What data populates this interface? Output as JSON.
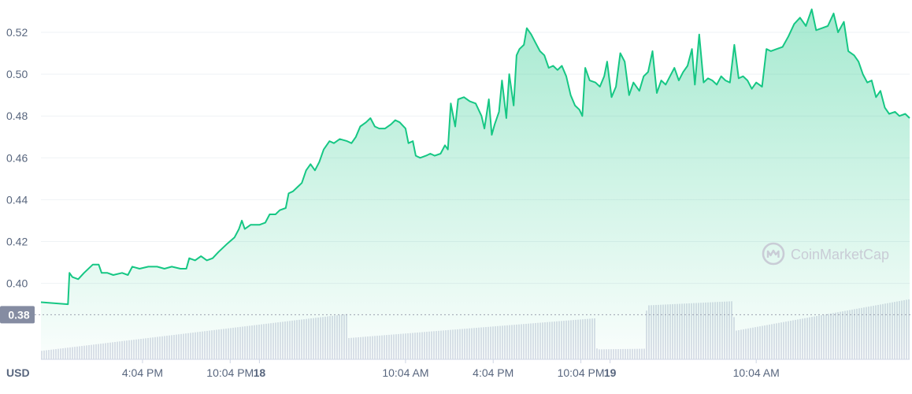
{
  "chart_data": {
    "type": "area",
    "currency": "USD",
    "y_ticks": [
      "0.52",
      "0.50",
      "0.48",
      "0.46",
      "0.44",
      "0.42",
      "0.40"
    ],
    "ylim": [
      0.3725,
      0.5325
    ],
    "x_ticks": [
      {
        "label": "4:04 PM",
        "bold": false,
        "hour": 6
      },
      {
        "label": "10:04 PM",
        "bold": false,
        "hour": 12
      },
      {
        "label": "18",
        "bold": true,
        "hour": 14
      },
      {
        "label": "10:04 AM",
        "bold": false,
        "hour": 24
      },
      {
        "label": "4:04 PM",
        "bold": false,
        "hour": 30
      },
      {
        "label": "10:04 PM",
        "bold": false,
        "hour": 36
      },
      {
        "label": "19",
        "bold": true,
        "hour": 38
      },
      {
        "label": "10:04 AM",
        "bold": false,
        "hour": 48
      }
    ],
    "x_range_hours": [
      -0.95,
      58.5
    ],
    "current_price_label": "0.38",
    "current_price_value": 0.385,
    "watermark": "CoinMarketCap",
    "series": [
      {
        "kind": "price",
        "points": [
          [
            -0.95,
            0.391
          ],
          [
            0.9,
            0.39
          ],
          [
            1.0,
            0.405
          ],
          [
            1.2,
            0.403
          ],
          [
            1.6,
            0.402
          ],
          [
            2.0,
            0.405
          ],
          [
            2.6,
            0.409
          ],
          [
            3.0,
            0.409
          ],
          [
            3.2,
            0.405
          ],
          [
            3.6,
            0.405
          ],
          [
            4.0,
            0.404
          ],
          [
            4.6,
            0.405
          ],
          [
            5.0,
            0.404
          ],
          [
            5.3,
            0.408
          ],
          [
            5.8,
            0.407
          ],
          [
            6.4,
            0.408
          ],
          [
            7.0,
            0.408
          ],
          [
            7.5,
            0.407
          ],
          [
            8.0,
            0.408
          ],
          [
            8.6,
            0.407
          ],
          [
            9.0,
            0.407
          ],
          [
            9.2,
            0.412
          ],
          [
            9.6,
            0.411
          ],
          [
            10.0,
            0.413
          ],
          [
            10.4,
            0.411
          ],
          [
            10.8,
            0.412
          ],
          [
            11.2,
            0.415
          ],
          [
            11.8,
            0.419
          ],
          [
            12.3,
            0.422
          ],
          [
            12.6,
            0.426
          ],
          [
            12.8,
            0.43
          ],
          [
            13.0,
            0.426
          ],
          [
            13.4,
            0.428
          ],
          [
            14.0,
            0.428
          ],
          [
            14.4,
            0.429
          ],
          [
            14.7,
            0.433
          ],
          [
            15.1,
            0.433
          ],
          [
            15.4,
            0.435
          ],
          [
            15.8,
            0.436
          ],
          [
            16.0,
            0.443
          ],
          [
            16.3,
            0.444
          ],
          [
            16.6,
            0.446
          ],
          [
            16.9,
            0.448
          ],
          [
            17.2,
            0.454
          ],
          [
            17.5,
            0.457
          ],
          [
            17.8,
            0.454
          ],
          [
            18.1,
            0.458
          ],
          [
            18.4,
            0.464
          ],
          [
            18.8,
            0.468
          ],
          [
            19.1,
            0.467
          ],
          [
            19.5,
            0.469
          ],
          [
            20.0,
            0.468
          ],
          [
            20.3,
            0.467
          ],
          [
            20.6,
            0.47
          ],
          [
            20.9,
            0.475
          ],
          [
            21.3,
            0.477
          ],
          [
            21.6,
            0.479
          ],
          [
            21.9,
            0.475
          ],
          [
            22.2,
            0.474
          ],
          [
            22.6,
            0.474
          ],
          [
            23.0,
            0.476
          ],
          [
            23.3,
            0.478
          ],
          [
            23.6,
            0.477
          ],
          [
            24.0,
            0.474
          ],
          [
            24.2,
            0.467
          ],
          [
            24.5,
            0.468
          ],
          [
            24.7,
            0.461
          ],
          [
            25.0,
            0.46
          ],
          [
            25.4,
            0.461
          ],
          [
            25.7,
            0.462
          ],
          [
            26.0,
            0.461
          ],
          [
            26.4,
            0.462
          ],
          [
            26.7,
            0.466
          ],
          [
            26.9,
            0.464
          ],
          [
            27.1,
            0.486
          ],
          [
            27.4,
            0.475
          ],
          [
            27.6,
            0.488
          ],
          [
            28.0,
            0.489
          ],
          [
            28.4,
            0.487
          ],
          [
            28.8,
            0.486
          ],
          [
            29.2,
            0.48
          ],
          [
            29.4,
            0.474
          ],
          [
            29.7,
            0.488
          ],
          [
            29.9,
            0.471
          ],
          [
            30.1,
            0.476
          ],
          [
            30.4,
            0.482
          ],
          [
            30.6,
            0.497
          ],
          [
            30.9,
            0.479
          ],
          [
            31.1,
            0.5
          ],
          [
            31.4,
            0.485
          ],
          [
            31.6,
            0.509
          ],
          [
            31.8,
            0.512
          ],
          [
            32.1,
            0.514
          ],
          [
            32.3,
            0.522
          ],
          [
            32.6,
            0.519
          ],
          [
            32.9,
            0.515
          ],
          [
            33.2,
            0.511
          ],
          [
            33.5,
            0.509
          ],
          [
            33.8,
            0.503
          ],
          [
            34.1,
            0.504
          ],
          [
            34.4,
            0.502
          ],
          [
            34.7,
            0.504
          ],
          [
            35.0,
            0.499
          ],
          [
            35.3,
            0.49
          ],
          [
            35.6,
            0.485
          ],
          [
            35.9,
            0.483
          ],
          [
            36.1,
            0.48
          ],
          [
            36.3,
            0.503
          ],
          [
            36.6,
            0.497
          ],
          [
            37.0,
            0.496
          ],
          [
            37.3,
            0.494
          ],
          [
            37.6,
            0.499
          ],
          [
            37.8,
            0.506
          ],
          [
            38.1,
            0.489
          ],
          [
            38.4,
            0.494
          ],
          [
            38.7,
            0.51
          ],
          [
            39.0,
            0.506
          ],
          [
            39.3,
            0.49
          ],
          [
            39.6,
            0.496
          ],
          [
            40.0,
            0.492
          ],
          [
            40.3,
            0.499
          ],
          [
            40.6,
            0.501
          ],
          [
            40.9,
            0.511
          ],
          [
            41.2,
            0.491
          ],
          [
            41.5,
            0.497
          ],
          [
            41.8,
            0.495
          ],
          [
            42.1,
            0.499
          ],
          [
            42.4,
            0.503
          ],
          [
            42.7,
            0.497
          ],
          [
            43.0,
            0.501
          ],
          [
            43.3,
            0.504
          ],
          [
            43.6,
            0.512
          ],
          [
            43.8,
            0.495
          ],
          [
            44.1,
            0.519
          ],
          [
            44.4,
            0.496
          ],
          [
            44.7,
            0.498
          ],
          [
            45.0,
            0.497
          ],
          [
            45.3,
            0.495
          ],
          [
            45.6,
            0.499
          ],
          [
            45.9,
            0.497
          ],
          [
            46.2,
            0.496
          ],
          [
            46.5,
            0.514
          ],
          [
            46.8,
            0.498
          ],
          [
            47.1,
            0.499
          ],
          [
            47.4,
            0.497
          ],
          [
            47.7,
            0.493
          ],
          [
            48.0,
            0.496
          ],
          [
            48.4,
            0.494
          ],
          [
            48.7,
            0.512
          ],
          [
            49.0,
            0.511
          ],
          [
            49.4,
            0.512
          ],
          [
            49.8,
            0.513
          ],
          [
            50.2,
            0.518
          ],
          [
            50.6,
            0.524
          ],
          [
            51.0,
            0.527
          ],
          [
            51.4,
            0.523
          ],
          [
            51.8,
            0.531
          ],
          [
            52.1,
            0.521
          ],
          [
            52.5,
            0.522
          ],
          [
            52.9,
            0.523
          ],
          [
            53.3,
            0.529
          ],
          [
            53.6,
            0.52
          ],
          [
            54.0,
            0.525
          ],
          [
            54.3,
            0.511
          ],
          [
            54.7,
            0.509
          ],
          [
            55.0,
            0.506
          ],
          [
            55.3,
            0.5
          ],
          [
            55.6,
            0.496
          ],
          [
            55.9,
            0.497
          ],
          [
            56.2,
            0.489
          ],
          [
            56.5,
            0.492
          ],
          [
            56.8,
            0.484
          ],
          [
            57.1,
            0.481
          ],
          [
            57.5,
            0.482
          ],
          [
            57.8,
            0.48
          ],
          [
            58.2,
            0.481
          ],
          [
            58.5,
            0.479
          ]
        ]
      },
      {
        "kind": "volume",
        "points": [
          [
            -0.95,
            0.12
          ],
          [
            20.0,
            0.64
          ],
          [
            20.05,
            0.3
          ],
          [
            37.0,
            0.58
          ],
          [
            37.05,
            0.14
          ],
          [
            40.4,
            0.15
          ],
          [
            40.45,
            0.76
          ],
          [
            46.4,
            0.82
          ],
          [
            46.45,
            0.4
          ],
          [
            58.5,
            0.85
          ]
        ]
      }
    ]
  }
}
